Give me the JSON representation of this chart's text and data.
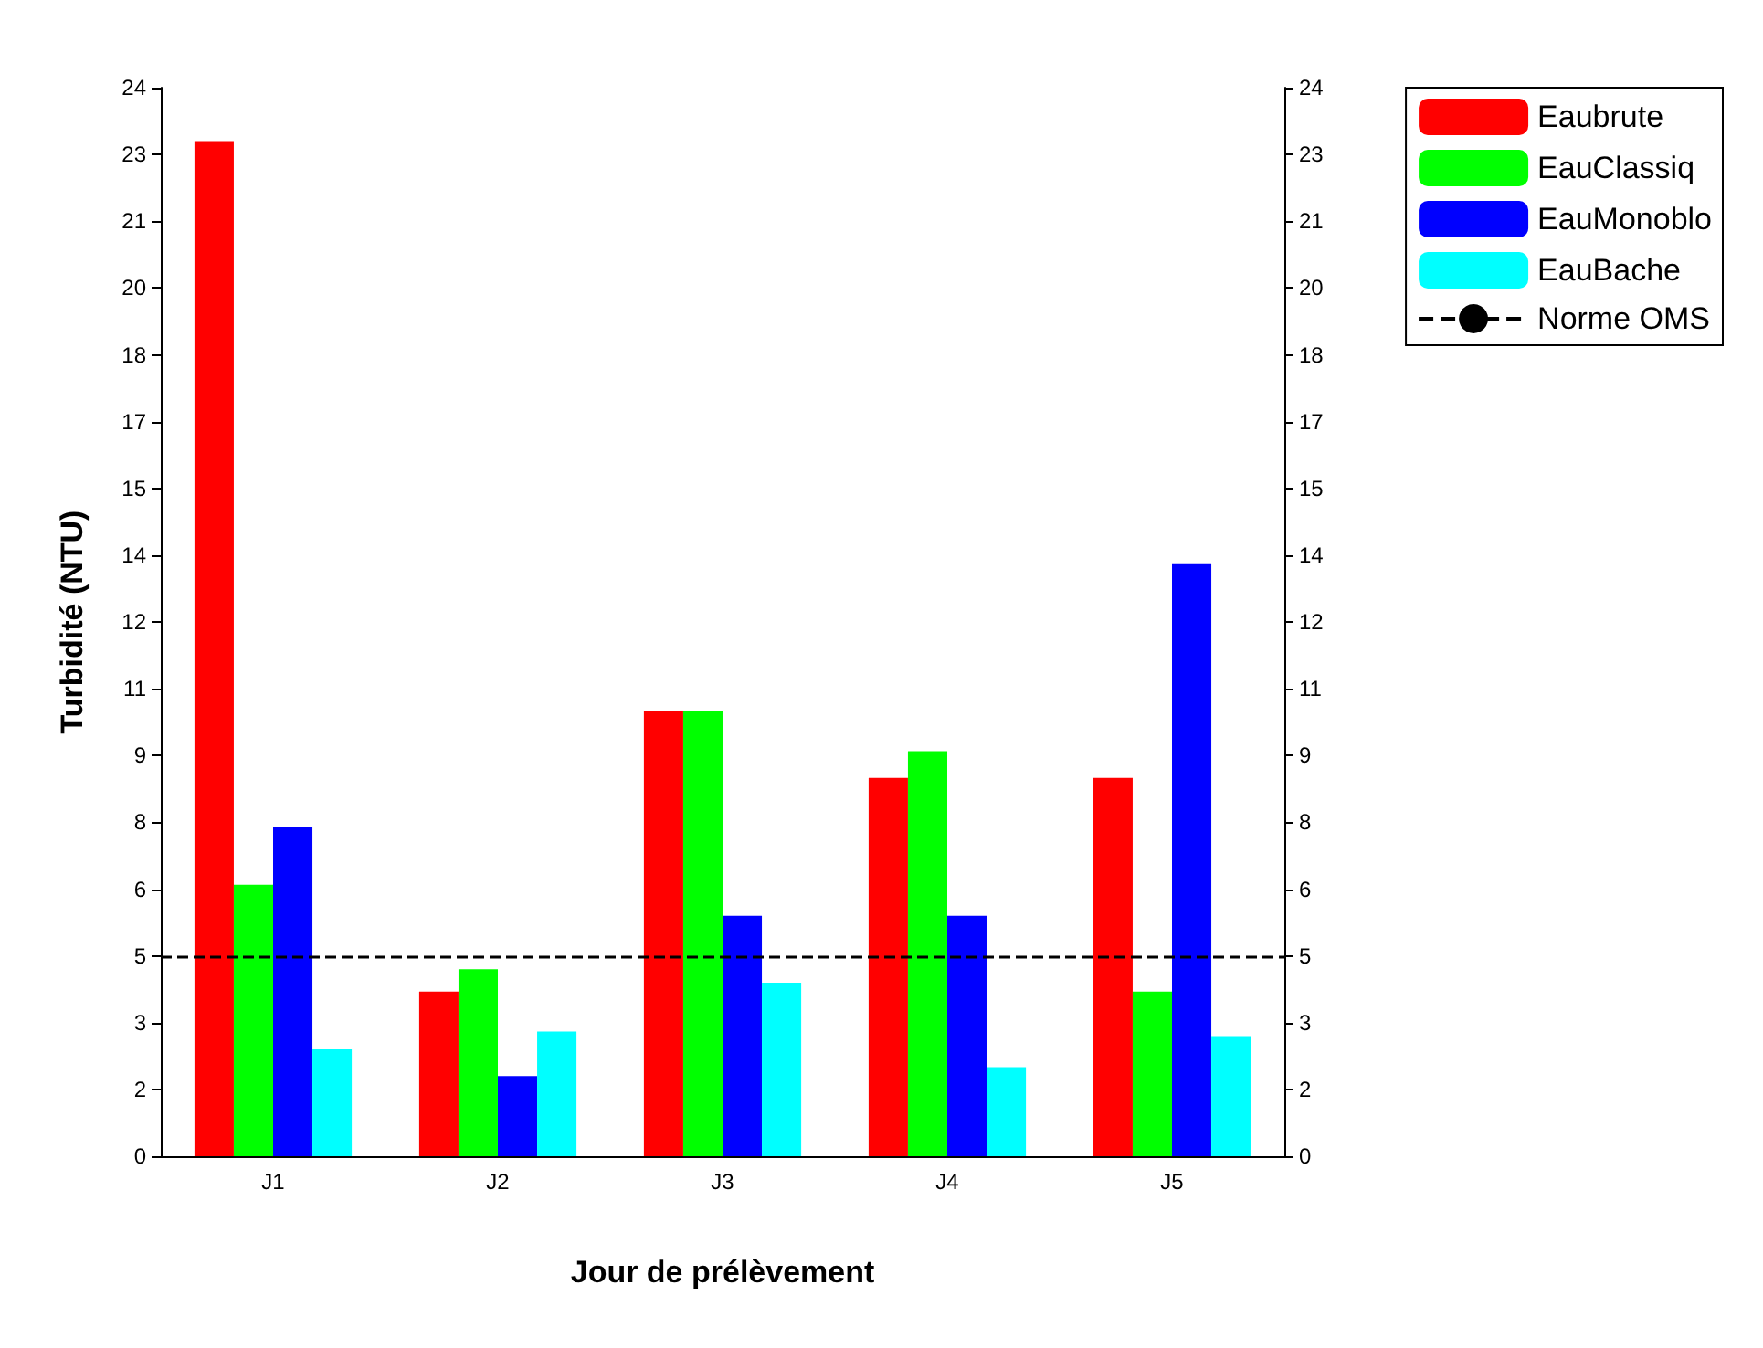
{
  "chart_data": {
    "type": "bar",
    "xlabel": "Jour de prélèvement",
    "ylabel": "Turbidité (NTU)",
    "categories": [
      "J1",
      "J2",
      "J3",
      "J4",
      "J5"
    ],
    "series": [
      {
        "name": "Eaubrute",
        "color": "#ff0000",
        "values": [
          22.8,
          3.7,
          10,
          8.5,
          8.5
        ]
      },
      {
        "name": "EauClassiq",
        "color": "#00ff00",
        "values": [
          6.1,
          4.2,
          10,
          9.1,
          3.7
        ]
      },
      {
        "name": "EauMonoblo",
        "color": "#0000ff",
        "values": [
          7.4,
          1.8,
          5.4,
          5.4,
          13.3
        ]
      },
      {
        "name": "EauBache",
        "color": "#00ffff",
        "values": [
          2.4,
          2.8,
          3.9,
          2,
          2.7
        ]
      }
    ],
    "ylim": [
      0,
      24
    ],
    "yticks": [
      0,
      {
        "value": 1.5,
        "label": "2"
      },
      3,
      {
        "value": 4.5,
        "label": "5"
      },
      6,
      {
        "value": 7.5,
        "label": "8"
      },
      9,
      {
        "value": 10.5,
        "label": "11"
      },
      12,
      {
        "value": 13.5,
        "label": "14"
      },
      15,
      {
        "value": 16.5,
        "label": "17"
      },
      18,
      {
        "value": 19.5,
        "label": "20"
      },
      21,
      {
        "value": 22.5,
        "label": "23"
      },
      24
    ],
    "y2lim": [
      0,
      24
    ],
    "y2ticks": [
      0,
      {
        "value": 1.5,
        "label": "2"
      },
      3,
      {
        "value": 4.5,
        "label": "5"
      },
      6,
      {
        "value": 7.5,
        "label": "8"
      },
      9,
      {
        "value": 10.5,
        "label": "11"
      },
      12,
      {
        "value": 13.5,
        "label": "14"
      },
      15,
      {
        "value": 16.5,
        "label": "17"
      },
      18,
      {
        "value": 19.5,
        "label": "20"
      },
      21,
      {
        "value": 22.5,
        "label": "23"
      },
      24
    ],
    "ref_lines": [
      {
        "axis": "y",
        "value": 4.5,
        "label": "Norme OMS",
        "color": "#000000",
        "line_style": "dashed"
      }
    ],
    "grid": false,
    "legend": "top right"
  }
}
